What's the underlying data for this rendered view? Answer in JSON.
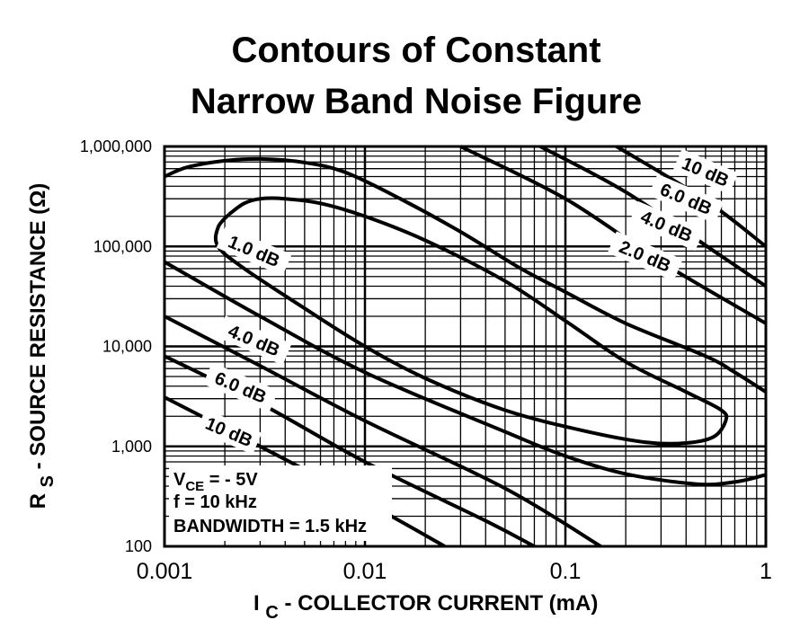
{
  "chart_data": {
    "type": "line",
    "title_line1": "Contours of Constant",
    "title_line2": "Narrow Band Noise Figure",
    "xlabel": {
      "main": "I",
      "sub": "C",
      "rest": " - COLLECTOR CURRENT (mA)"
    },
    "ylabel": {
      "main": "R",
      "sub": "S",
      "rest": " - SOURCE RESISTANCE (Ω)"
    },
    "x_scale": "log",
    "y_scale": "log",
    "xlim": [
      0.001,
      1
    ],
    "ylim": [
      100,
      1000000
    ],
    "grid": true,
    "x_ticks": [
      {
        "value": 0.001,
        "label": "0.001"
      },
      {
        "value": 0.01,
        "label": "0.01"
      },
      {
        "value": 0.1,
        "label": "0.1"
      },
      {
        "value": 1,
        "label": "1"
      }
    ],
    "y_ticks": [
      {
        "value": 1000000,
        "label": "1,000,000"
      },
      {
        "value": 100000,
        "label": "100,000"
      },
      {
        "value": 10000,
        "label": "10,000"
      },
      {
        "value": 1000,
        "label": "1,000"
      },
      {
        "value": 100,
        "label": "100"
      }
    ],
    "conditions": {
      "vce_main": "V",
      "vce_sub": "CE",
      "vce_rest": " = - 5V",
      "freq": "f = 10 kHz",
      "bandwidth": "BANDWIDTH = 1.5 kHz"
    },
    "series": [
      {
        "name": "1.0 dB",
        "label_at": [
          0.0028,
          90000
        ],
        "points": [
          [
            0.0021,
            210000
          ],
          [
            0.0025,
            270000
          ],
          [
            0.003,
            300000
          ],
          [
            0.004,
            300000
          ],
          [
            0.006,
            270000
          ],
          [
            0.01,
            200000
          ],
          [
            0.02,
            115000
          ],
          [
            0.05,
            45000
          ],
          [
            0.1,
            18000
          ],
          [
            0.2,
            7000
          ],
          [
            0.4,
            3500
          ],
          [
            0.6,
            2300
          ],
          [
            0.63,
            1800
          ],
          [
            0.55,
            1250
          ],
          [
            0.4,
            1080
          ],
          [
            0.25,
            1100
          ],
          [
            0.12,
            1450
          ],
          [
            0.05,
            2300
          ],
          [
            0.02,
            4800
          ],
          [
            0.01,
            10000
          ],
          [
            0.005,
            24000
          ],
          [
            0.0025,
            60000
          ],
          [
            0.00185,
            100000
          ],
          [
            0.00185,
            155000
          ],
          [
            0.0021,
            210000
          ]
        ]
      },
      {
        "name": "2.0 dB",
        "label_at": [
          0.25,
          80000
        ],
        "points": [
          [
            0.001,
            500000
          ],
          [
            0.0013,
            620000
          ],
          [
            0.002,
            720000
          ],
          [
            0.003,
            750000
          ],
          [
            0.005,
            690000
          ],
          [
            0.008,
            550000
          ],
          [
            0.015,
            300000
          ],
          [
            0.03,
            140000
          ],
          [
            0.06,
            60000
          ],
          [
            0.1,
            35000
          ],
          [
            0.2,
            17000
          ],
          [
            0.5,
            8000
          ],
          [
            0.7,
            5500
          ],
          [
            1,
            3500
          ]
        ]
      },
      {
        "name": "4.0 dB",
        "label_at": [
          0.32,
          160000
        ],
        "points": [
          [
            0.03,
            1000000
          ],
          [
            0.1,
            300000
          ],
          [
            0.3,
            70000
          ],
          [
            1,
            17000
          ]
        ]
      },
      {
        "name": "6.0 dB",
        "label_at": [
          0.4,
          300000
        ],
        "points": [
          [
            0.075,
            1000000
          ],
          [
            0.2,
            350000
          ],
          [
            0.6,
            80000
          ],
          [
            1,
            40000
          ]
        ]
      },
      {
        "name": "10 dB",
        "label_at": [
          0.5,
          560000
        ],
        "points": [
          [
            0.18,
            1000000
          ],
          [
            0.5,
            290000
          ],
          [
            1,
            100000
          ]
        ]
      },
      {
        "name": "4.0 dB",
        "label_at": [
          0.0028,
          11500
        ],
        "points": [
          [
            0.001,
            70000
          ],
          [
            0.003,
            20000
          ],
          [
            0.01,
            5500
          ],
          [
            0.05,
            1400
          ],
          [
            0.1,
            800
          ],
          [
            0.2,
            530
          ],
          [
            0.45,
            420
          ],
          [
            0.7,
            440
          ],
          [
            1,
            520
          ]
        ]
      },
      {
        "name": "6.0 dB",
        "label_at": [
          0.0024,
          3900
        ],
        "points": [
          [
            0.001,
            20000
          ],
          [
            0.003,
            6400
          ],
          [
            0.01,
            1800
          ],
          [
            0.05,
            380
          ],
          [
            0.15,
            100
          ]
        ]
      },
      {
        "name": "10 dB",
        "label_at": [
          0.0021,
          1400
        ],
        "points": [
          [
            0.001,
            8000
          ],
          [
            0.003,
            2700
          ],
          [
            0.01,
            700
          ],
          [
            0.04,
            180
          ],
          [
            0.07,
            100
          ]
        ]
      },
      {
        "name": "",
        "label_at": null,
        "points": [
          [
            0.001,
            3100
          ],
          [
            0.003,
            1000
          ],
          [
            0.01,
            280
          ],
          [
            0.025,
            100
          ]
        ]
      }
    ]
  }
}
